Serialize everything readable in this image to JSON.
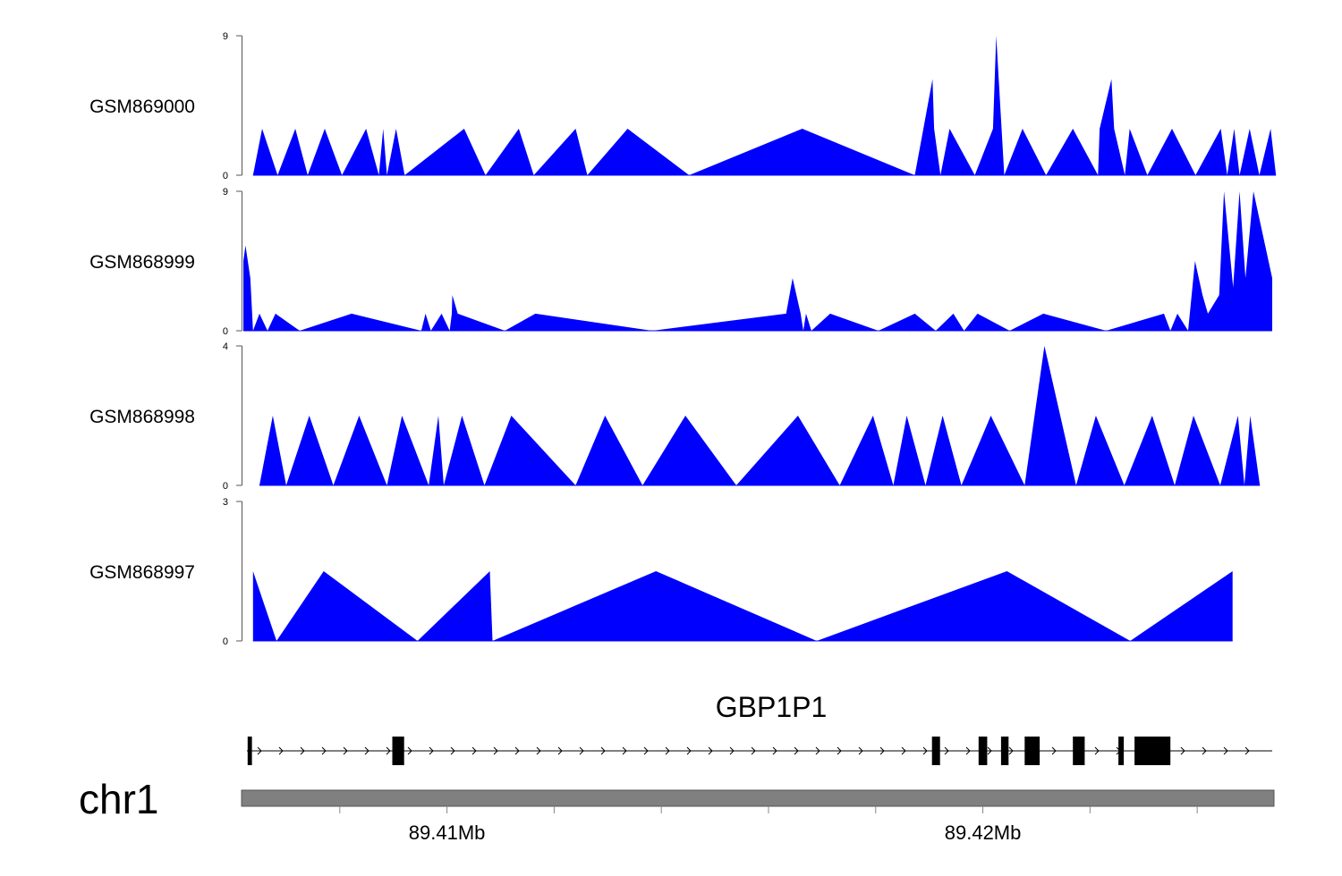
{
  "chart_data": {
    "type": "area",
    "tracks": [
      {
        "name": "GSM869000",
        "ylim": [
          0,
          9
        ],
        "yticks": [
          "0",
          "9"
        ],
        "fill": "#0000ff",
        "x": [
          89.40638,
          89.40655,
          89.40684,
          89.40717,
          89.4074,
          89.40772,
          89.40804,
          89.40849,
          89.40873,
          89.40881,
          89.40888,
          89.40905,
          89.40921,
          89.41032,
          89.41072,
          89.41134,
          89.41162,
          89.4124,
          89.41262,
          89.41337,
          89.41452,
          89.41663,
          89.41873,
          89.41889,
          89.41906,
          89.41909,
          89.41921,
          89.41938,
          89.41985,
          89.42019,
          89.42025,
          89.42035,
          89.4204,
          89.42074,
          89.42118,
          89.42168,
          89.42215,
          89.42218,
          89.4224,
          89.42245,
          89.42265,
          89.42274,
          89.42307,
          89.42353,
          89.42397,
          89.42444,
          89.42456,
          89.42469,
          89.42479,
          89.42498,
          89.42516,
          89.42537,
          89.42547
        ],
        "y": [
          0,
          3,
          0,
          3,
          0,
          3,
          0,
          3,
          0,
          3,
          0,
          3,
          0,
          3,
          0,
          3,
          0,
          3,
          0,
          3,
          0,
          3,
          0,
          3,
          6.2,
          3,
          0,
          3,
          0,
          3,
          9,
          3,
          0,
          3,
          0,
          3,
          0,
          3,
          6.2,
          3,
          0,
          3,
          0,
          3,
          0,
          3,
          0,
          3,
          0,
          3,
          0,
          3,
          0
        ]
      },
      {
        "name": "GSM868999",
        "ylim": [
          0,
          9
        ],
        "yticks": [
          "0",
          "9"
        ],
        "fill": "#0000ff",
        "x": [
          89.4062,
          89.40624,
          89.40633,
          89.40638,
          89.4065,
          89.40665,
          89.4068,
          89.40725,
          89.40822,
          89.40952,
          89.4096,
          89.4097,
          89.4099,
          89.41005,
          89.41009,
          89.4101,
          89.4102,
          89.41108,
          89.41165,
          89.41383,
          89.41633,
          89.41645,
          89.4166,
          89.41665,
          89.4167,
          89.4168,
          89.41715,
          89.41805,
          89.41873,
          89.41912,
          89.41945,
          89.41965,
          89.4199,
          89.4205,
          89.42113,
          89.4223,
          89.42338,
          89.4235,
          89.42363,
          89.42383,
          89.42396,
          89.4241,
          89.4242,
          89.42441,
          89.4245,
          89.42467,
          89.42479,
          89.4249,
          89.42505,
          89.4254
        ],
        "y": [
          4.5,
          5.5,
          3.4,
          0,
          1.1,
          0,
          1.1,
          0,
          1.1,
          0,
          1.1,
          0,
          1.1,
          0,
          1.1,
          2.3,
          1.1,
          0,
          1.1,
          0,
          1.1,
          3.4,
          1.1,
          0,
          1.1,
          0,
          1.1,
          0,
          1.1,
          0,
          1.1,
          0,
          1.1,
          0,
          1.1,
          0,
          1.1,
          0,
          1.1,
          0,
          4.5,
          2.3,
          1.1,
          2.3,
          9,
          2.8,
          9,
          3.4,
          9,
          3.4
        ]
      },
      {
        "name": "GSM868998",
        "ylim": [
          0,
          4
        ],
        "yticks": [
          "0",
          "4"
        ],
        "fill": "#0000ff",
        "x": [
          89.4065,
          89.40675,
          89.407,
          89.40743,
          89.40788,
          89.40836,
          89.40888,
          89.40916,
          89.40966,
          89.40984,
          89.40994,
          89.41028,
          89.4107,
          89.4112,
          89.4124,
          89.41295,
          89.41365,
          89.41445,
          89.4154,
          89.41655,
          89.41733,
          89.41795,
          89.41833,
          89.41858,
          89.41893,
          89.41925,
          89.4196,
          89.42015,
          89.42078,
          89.42115,
          89.42174,
          89.42211,
          89.42264,
          89.42316,
          89.42358,
          89.42393,
          89.42443,
          89.42476,
          89.42488,
          89.42499,
          89.42517
        ],
        "y": [
          0,
          2,
          0,
          2,
          0,
          2,
          0,
          2,
          0,
          2,
          0,
          2,
          0,
          2,
          0,
          2,
          0,
          2,
          0,
          2,
          0,
          2,
          0,
          2,
          0,
          2,
          0,
          2,
          0,
          4,
          0,
          2,
          0,
          2,
          0,
          2,
          0,
          2,
          0,
          2,
          0
        ]
      },
      {
        "name": "GSM868997",
        "ylim": [
          0,
          3
        ],
        "yticks": [
          "0",
          "3"
        ],
        "fill": "#0000ff",
        "x": [
          89.40638,
          89.40682,
          89.4077,
          89.40945,
          89.4108,
          89.41085,
          89.4139,
          89.4169,
          89.42045,
          89.42275,
          89.42466
        ],
        "y": [
          1.5,
          0,
          1.5,
          0,
          1.5,
          0,
          1.5,
          0,
          1.5,
          0,
          1.5
        ]
      }
    ],
    "gene": {
      "name": "GBP1P1",
      "strand": "+",
      "exons": [
        [
          89.40628,
          89.40636
        ],
        [
          89.40898,
          89.4092
        ],
        [
          89.41905,
          89.4192
        ],
        [
          89.41992,
          89.42008
        ],
        [
          89.42034,
          89.42048
        ],
        [
          89.42078,
          89.42106
        ],
        [
          89.42168,
          89.4219
        ],
        [
          89.42253,
          89.42263
        ],
        [
          89.42283,
          89.4235
        ]
      ]
    },
    "axis": {
      "chromosome": "chr1",
      "range": [
        89.4062,
        89.4254
      ],
      "tick_labels": [
        "89.41Mb",
        "89.42Mb"
      ],
      "tick_values": [
        89.41,
        89.42
      ],
      "minor_ticks": [
        89.406,
        89.408,
        89.41,
        89.412,
        89.414,
        89.416,
        89.418,
        89.42,
        89.422,
        89.424,
        89.426
      ]
    }
  }
}
